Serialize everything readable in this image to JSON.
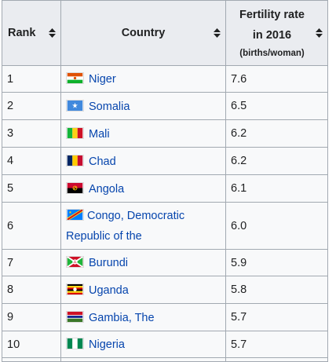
{
  "table": {
    "headers": {
      "rank": "Rank",
      "country": "Country",
      "fert_line1": "Fertility rate",
      "fert_line2": "in 2016",
      "fert_unit": "(births/woman)"
    },
    "rows": [
      {
        "rank": "1",
        "country": "Niger",
        "rate": "7.6",
        "flag": "niger-flag"
      },
      {
        "rank": "2",
        "country": "Somalia",
        "rate": "6.5",
        "flag": "somalia-flag"
      },
      {
        "rank": "3",
        "country": "Mali",
        "rate": "6.2",
        "flag": "mali-flag"
      },
      {
        "rank": "4",
        "country": "Chad",
        "rate": "6.2",
        "flag": "chad-flag"
      },
      {
        "rank": "5",
        "country": "Angola",
        "rate": "6.1",
        "flag": "angola-flag"
      },
      {
        "rank": "6",
        "country_line1": "Congo, Democratic",
        "country_line2": "Republic of the",
        "rate": "6.0",
        "flag": "drc-flag"
      },
      {
        "rank": "7",
        "country": "Burundi",
        "rate": "5.9",
        "flag": "burundi-flag"
      },
      {
        "rank": "8",
        "country": "Uganda",
        "rate": "5.8",
        "flag": "uganda-flag"
      },
      {
        "rank": "9",
        "country": "Gambia, The",
        "rate": "5.7",
        "flag": "gambia-flag"
      },
      {
        "rank": "10",
        "country": "Nigeria",
        "rate": "5.7",
        "flag": "nigeria-flag"
      }
    ]
  },
  "colors": {
    "link": "#0645ad",
    "header_bg": "#eaecf0",
    "cell_bg": "#f8f9fa",
    "border": "#a2a9b1"
  }
}
